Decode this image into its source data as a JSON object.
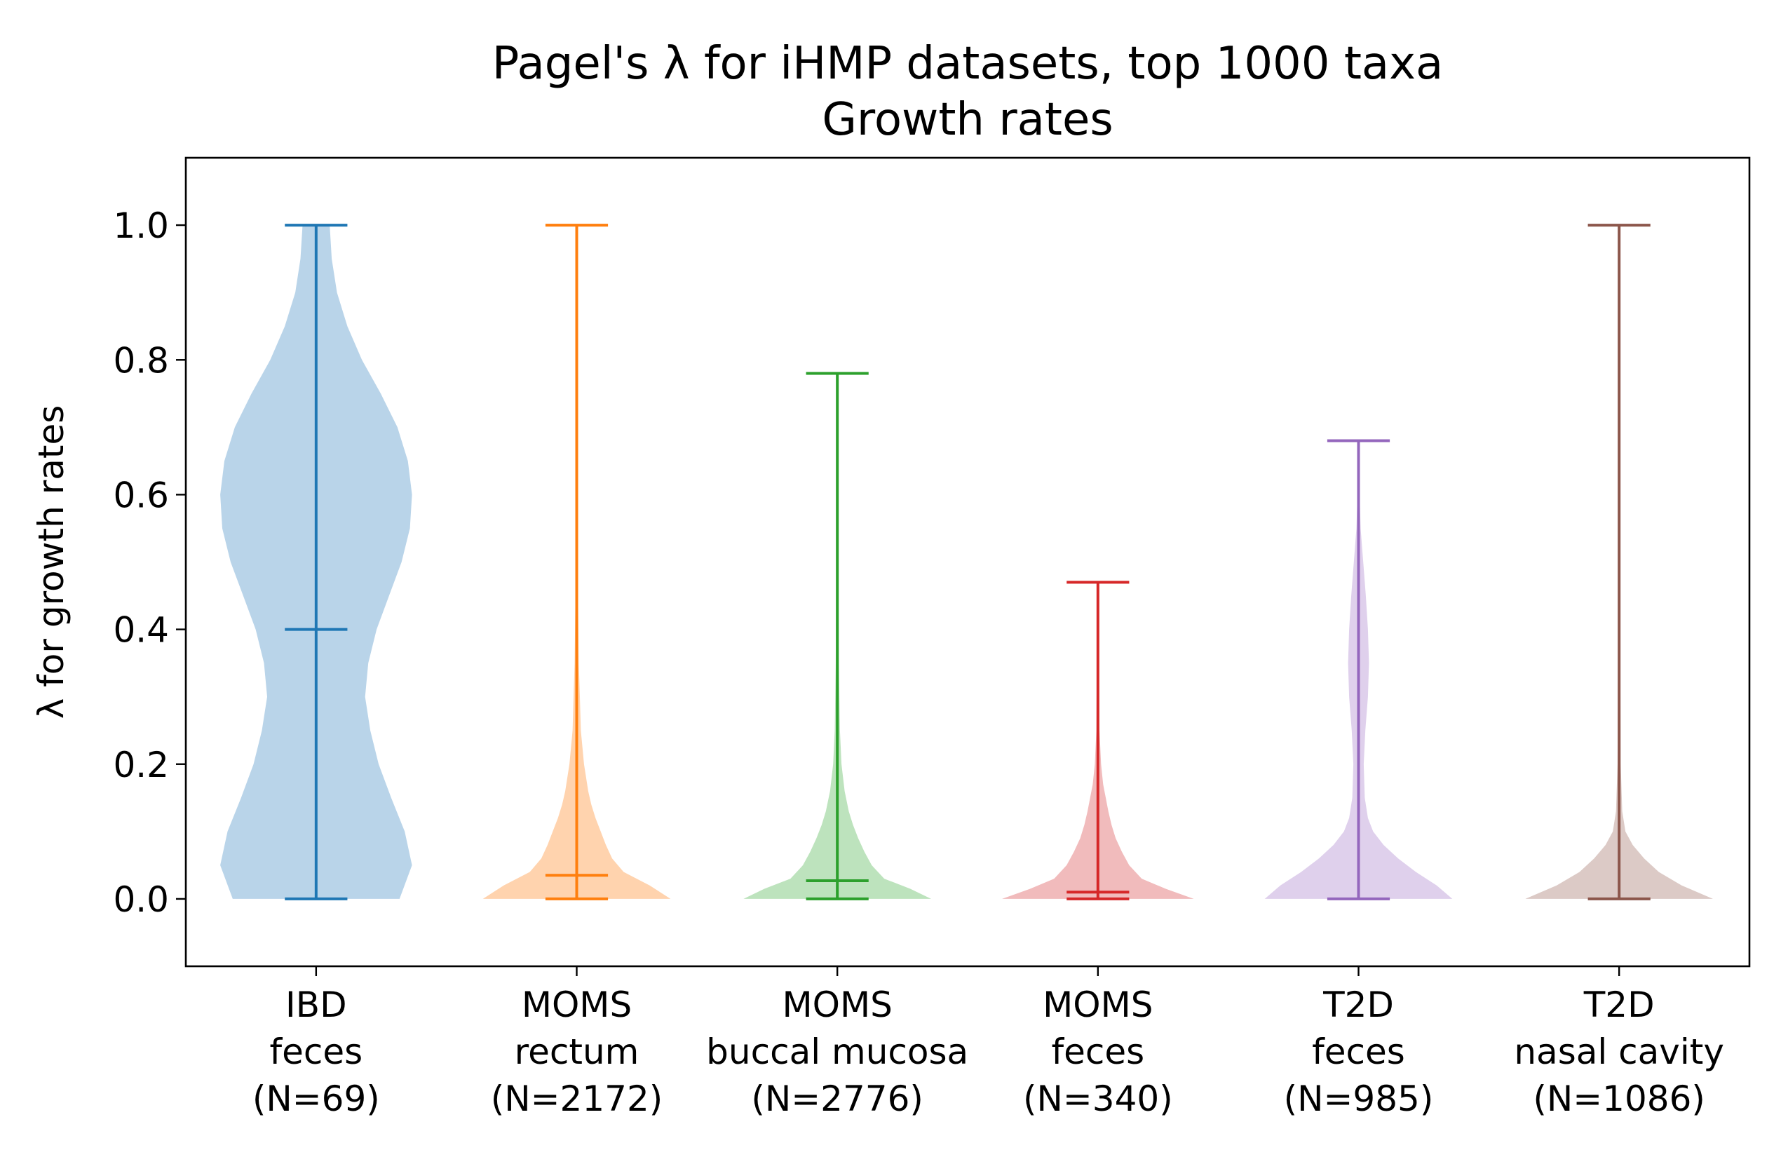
{
  "chart_data": {
    "type": "violin",
    "title_lines": [
      "Pagel's λ for iHMP datasets, top 1000 taxa",
      "Growth rates"
    ],
    "xlabel": "",
    "ylabel": "λ for growth rates",
    "ylim": [
      -0.1,
      1.1
    ],
    "yticks": [
      0.0,
      0.2,
      0.4,
      0.6,
      0.8,
      1.0
    ],
    "ytick_labels": [
      "0.0",
      "0.2",
      "0.4",
      "0.6",
      "0.8",
      "1.0"
    ],
    "grid": false,
    "legend": "none",
    "series": [
      {
        "label_lines": [
          "IBD",
          "feces",
          "(N=69)"
        ],
        "color": "#1f77b4",
        "fill": "#b9d4e9",
        "min": 0.0,
        "max": 1.0,
        "median": 0.4,
        "profile": [
          [
            0.0,
            0.8
          ],
          [
            0.05,
            0.92
          ],
          [
            0.1,
            0.85
          ],
          [
            0.15,
            0.72
          ],
          [
            0.2,
            0.6
          ],
          [
            0.25,
            0.52
          ],
          [
            0.3,
            0.47
          ],
          [
            0.35,
            0.5
          ],
          [
            0.4,
            0.58
          ],
          [
            0.45,
            0.7
          ],
          [
            0.5,
            0.82
          ],
          [
            0.55,
            0.9
          ],
          [
            0.6,
            0.92
          ],
          [
            0.65,
            0.88
          ],
          [
            0.7,
            0.78
          ],
          [
            0.75,
            0.62
          ],
          [
            0.8,
            0.44
          ],
          [
            0.85,
            0.3
          ],
          [
            0.9,
            0.2
          ],
          [
            0.95,
            0.15
          ],
          [
            1.0,
            0.13
          ]
        ]
      },
      {
        "label_lines": [
          "MOMS",
          "rectum",
          "(N=2172)"
        ],
        "color": "#ff7f0e",
        "fill": "#ffd3ae",
        "min": 0.0,
        "max": 1.0,
        "median": 0.035,
        "profile": [
          [
            0.0,
            0.9
          ],
          [
            0.02,
            0.7
          ],
          [
            0.04,
            0.45
          ],
          [
            0.06,
            0.34
          ],
          [
            0.08,
            0.28
          ],
          [
            0.1,
            0.23
          ],
          [
            0.12,
            0.18
          ],
          [
            0.14,
            0.14
          ],
          [
            0.16,
            0.11
          ],
          [
            0.2,
            0.07
          ],
          [
            0.25,
            0.04
          ],
          [
            0.3,
            0.03
          ],
          [
            0.35,
            0.02
          ],
          [
            0.45,
            0.012
          ],
          [
            0.6,
            0.01
          ],
          [
            0.8,
            0.008
          ],
          [
            1.0,
            0.008
          ]
        ]
      },
      {
        "label_lines": [
          "MOMS",
          "buccal mucosa",
          "(N=2776)"
        ],
        "color": "#2ca02c",
        "fill": "#bde3bd",
        "min": 0.0,
        "max": 0.78,
        "median": 0.027,
        "profile": [
          [
            0.0,
            0.9
          ],
          [
            0.015,
            0.7
          ],
          [
            0.03,
            0.45
          ],
          [
            0.05,
            0.33
          ],
          [
            0.07,
            0.26
          ],
          [
            0.09,
            0.2
          ],
          [
            0.11,
            0.15
          ],
          [
            0.13,
            0.11
          ],
          [
            0.16,
            0.07
          ],
          [
            0.2,
            0.04
          ],
          [
            0.25,
            0.025
          ],
          [
            0.35,
            0.015
          ],
          [
            0.5,
            0.01
          ],
          [
            0.78,
            0.008
          ]
        ]
      },
      {
        "label_lines": [
          "MOMS",
          "feces",
          "(N=340)"
        ],
        "color": "#d62728",
        "fill": "#f1bbbc",
        "min": 0.0,
        "max": 0.47,
        "median": 0.01,
        "profile": [
          [
            0.0,
            0.92
          ],
          [
            0.015,
            0.65
          ],
          [
            0.03,
            0.42
          ],
          [
            0.05,
            0.3
          ],
          [
            0.07,
            0.23
          ],
          [
            0.09,
            0.17
          ],
          [
            0.11,
            0.13
          ],
          [
            0.13,
            0.1
          ],
          [
            0.15,
            0.075
          ],
          [
            0.17,
            0.05
          ],
          [
            0.2,
            0.03
          ],
          [
            0.25,
            0.015
          ],
          [
            0.35,
            0.01
          ],
          [
            0.47,
            0.008
          ]
        ]
      },
      {
        "label_lines": [
          "T2D",
          "feces",
          "(N=985)"
        ],
        "color": "#9467bd",
        "fill": "#dfd0ec",
        "min": 0.0,
        "max": 0.68,
        "median": null,
        "profile": [
          [
            0.0,
            0.9
          ],
          [
            0.02,
            0.75
          ],
          [
            0.04,
            0.55
          ],
          [
            0.06,
            0.38
          ],
          [
            0.08,
            0.24
          ],
          [
            0.1,
            0.14
          ],
          [
            0.12,
            0.09
          ],
          [
            0.15,
            0.06
          ],
          [
            0.2,
            0.05
          ],
          [
            0.25,
            0.065
          ],
          [
            0.3,
            0.09
          ],
          [
            0.35,
            0.1
          ],
          [
            0.4,
            0.09
          ],
          [
            0.45,
            0.07
          ],
          [
            0.5,
            0.045
          ],
          [
            0.55,
            0.02
          ],
          [
            0.6,
            0.01
          ],
          [
            0.68,
            0.008
          ]
        ]
      },
      {
        "label_lines": [
          "T2D",
          "nasal cavity",
          "(N=1086)"
        ],
        "color": "#8c564b",
        "fill": "#dccac6",
        "min": 0.0,
        "max": 1.0,
        "median": null,
        "profile": [
          [
            0.0,
            0.9
          ],
          [
            0.02,
            0.6
          ],
          [
            0.04,
            0.38
          ],
          [
            0.06,
            0.24
          ],
          [
            0.08,
            0.13
          ],
          [
            0.1,
            0.06
          ],
          [
            0.13,
            0.03
          ],
          [
            0.2,
            0.015
          ],
          [
            0.4,
            0.01
          ],
          [
            0.7,
            0.008
          ],
          [
            1.0,
            0.008
          ]
        ]
      }
    ]
  }
}
